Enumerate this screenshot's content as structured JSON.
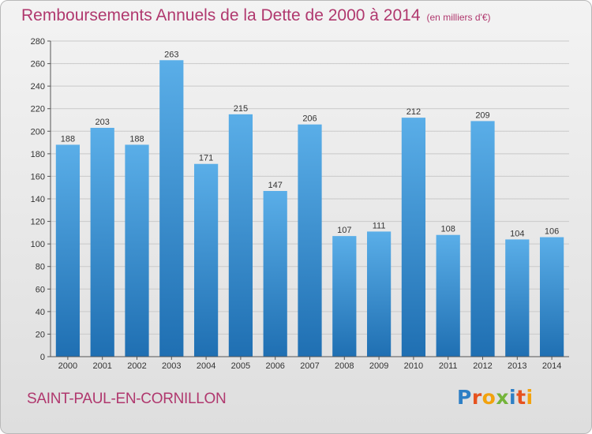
{
  "title": "Remboursements Annuels de la Dette de 2000 à 2014",
  "unit": "(en milliers d'€)",
  "commune": "SAINT-PAUL-EN-CORNILLON",
  "logo": "Proxiti",
  "colors": {
    "title": "#b0386e",
    "bar_light": "#5aaee8",
    "bar_dark": "#1f6fb2"
  },
  "chart_data": {
    "type": "bar",
    "title": "Remboursements Annuels de la Dette de 2000 à 2014",
    "xlabel": "",
    "ylabel": "",
    "categories": [
      "2000",
      "2001",
      "2002",
      "2003",
      "2004",
      "2005",
      "2006",
      "2007",
      "2008",
      "2009",
      "2010",
      "2011",
      "2012",
      "2013",
      "2014"
    ],
    "values": [
      188,
      203,
      188,
      263,
      171,
      215,
      147,
      206,
      107,
      111,
      212,
      108,
      209,
      104,
      106
    ],
    "ylim": [
      0,
      280
    ],
    "yticks": [
      0,
      20,
      40,
      60,
      80,
      100,
      120,
      140,
      160,
      180,
      200,
      220,
      240,
      260,
      280
    ],
    "grid": true
  }
}
